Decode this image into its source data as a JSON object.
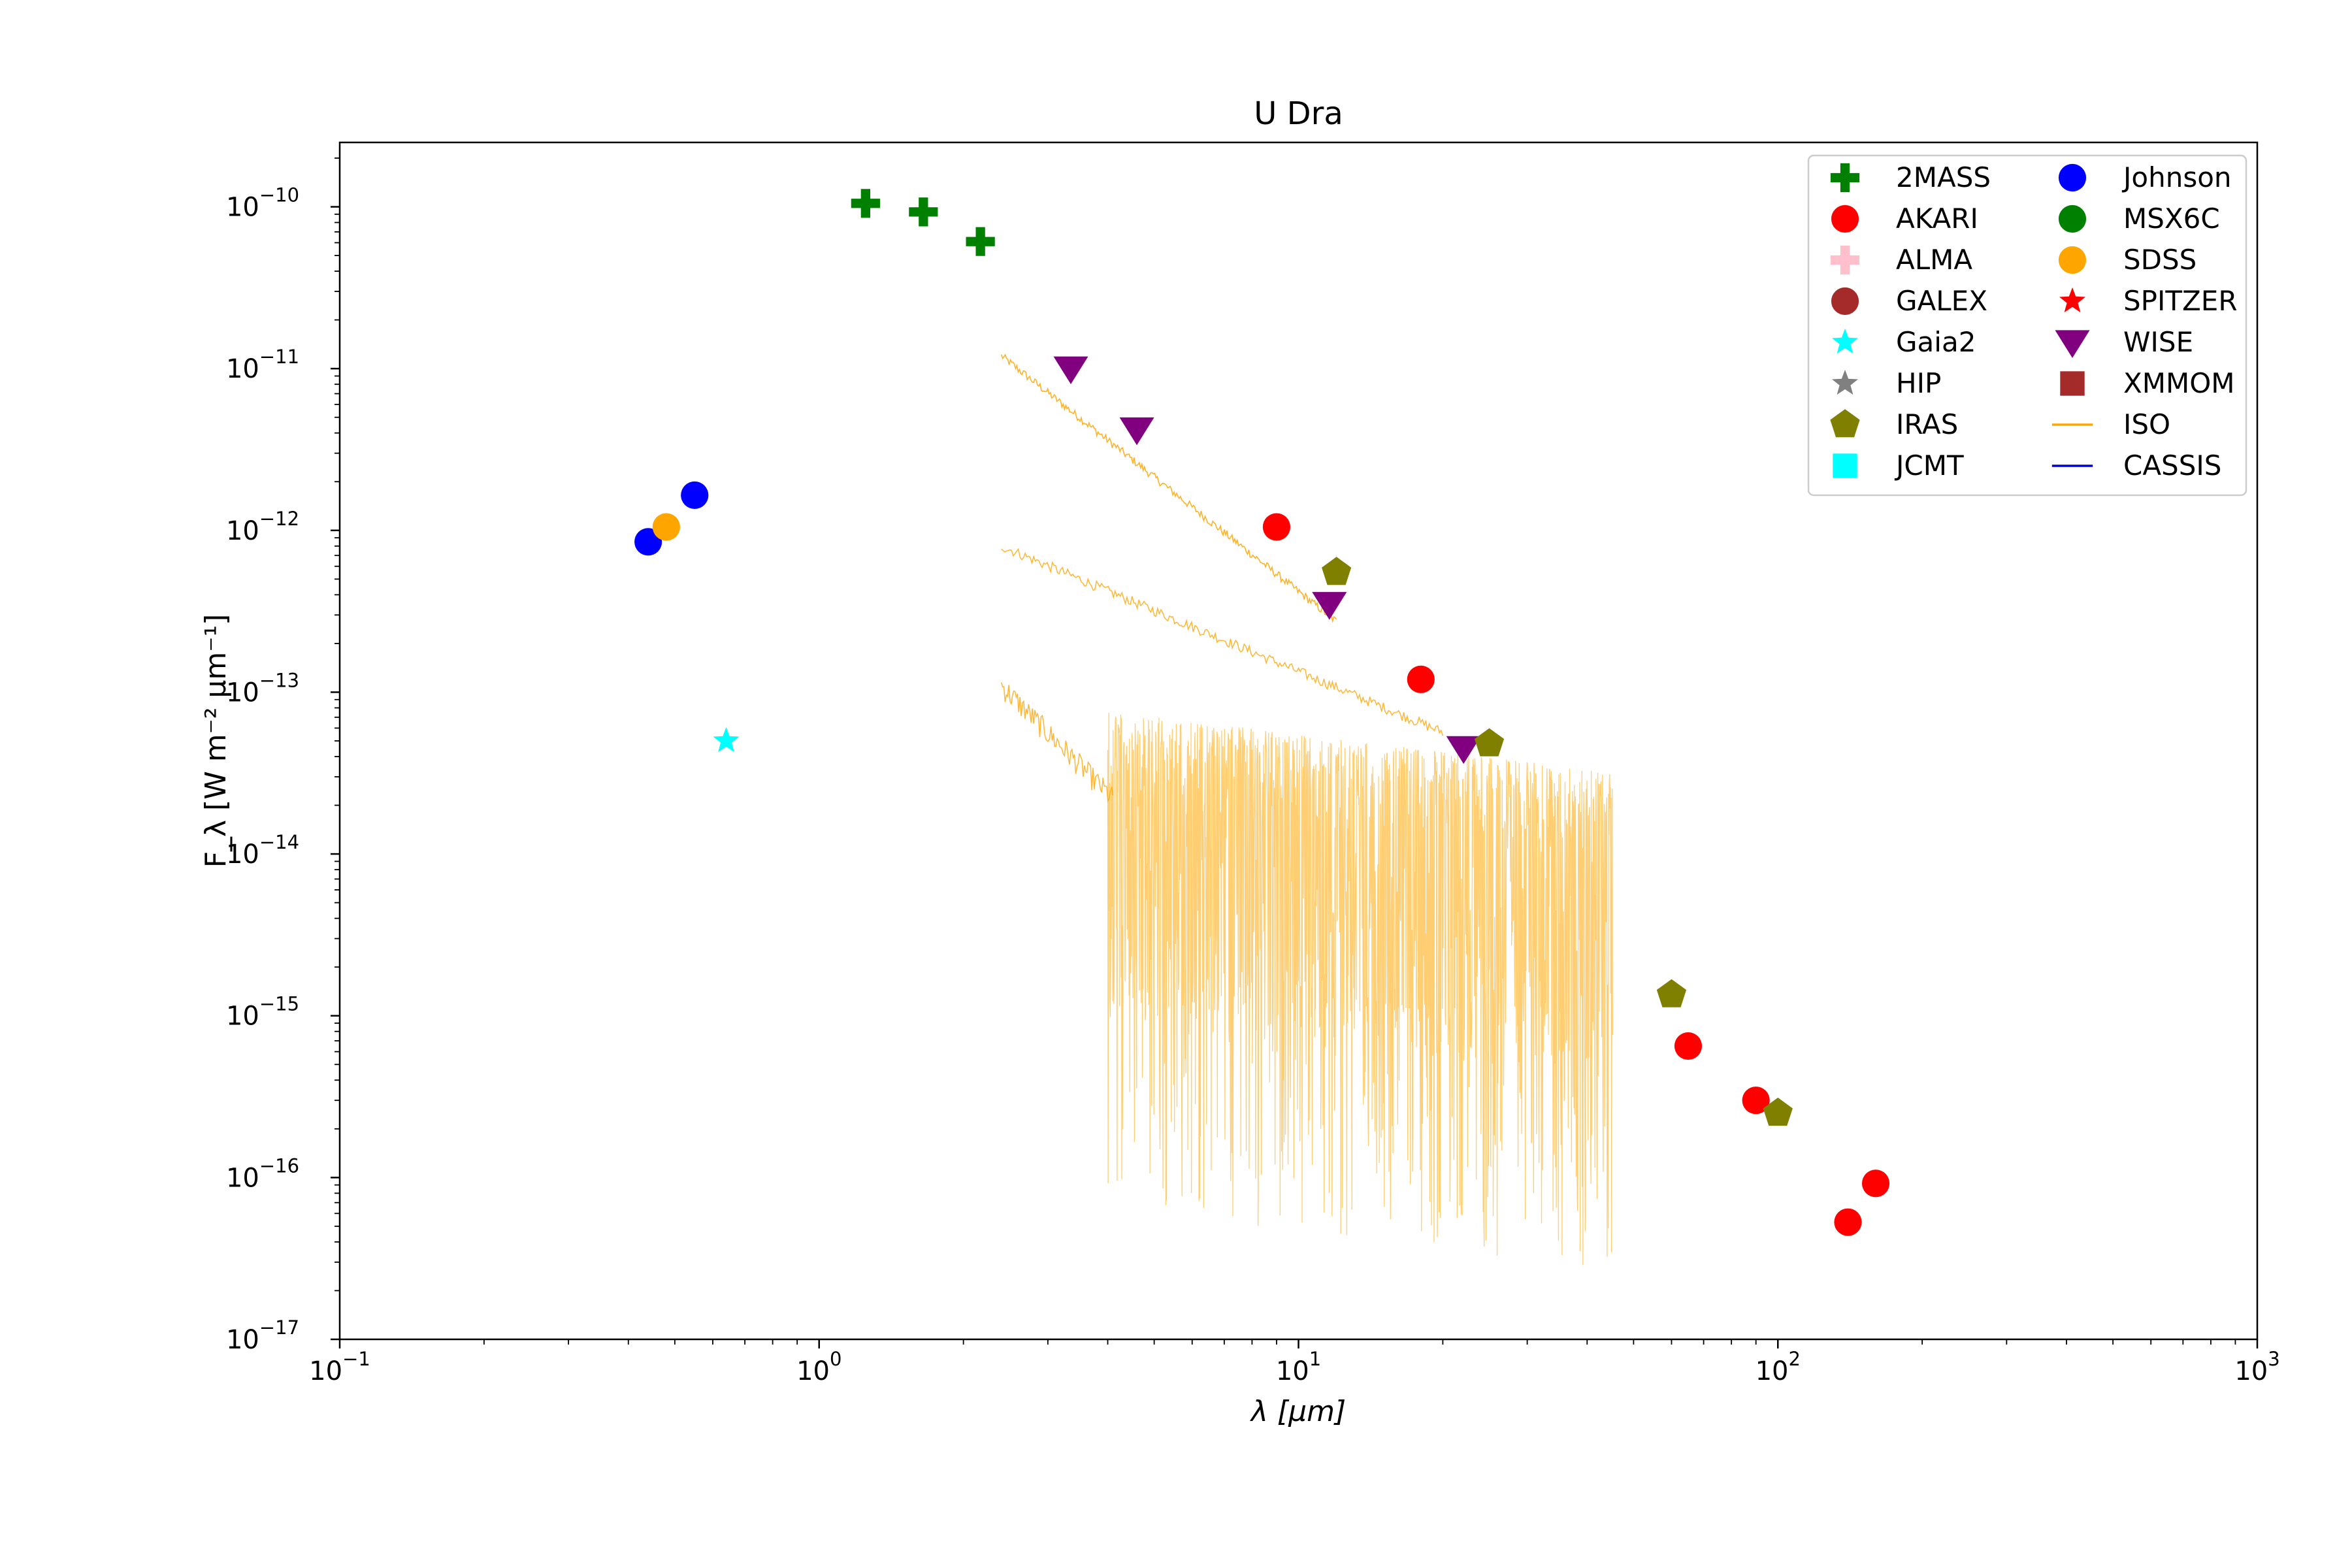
{
  "chart_data": {
    "type": "scatter",
    "title": "U Dra",
    "xlabel": "λ [μm]",
    "ylabel": "F_λ [W m⁻² μm⁻¹]",
    "x_scale": "log",
    "y_scale": "log",
    "xlim": [
      0.1,
      1000
    ],
    "ylim": [
      1e-17,
      2.5e-10
    ],
    "x_ticks": [
      {
        "value": 0.1,
        "base": "10",
        "exp": "−1"
      },
      {
        "value": 1,
        "base": "10",
        "exp": "0"
      },
      {
        "value": 10,
        "base": "10",
        "exp": "1"
      },
      {
        "value": 100,
        "base": "10",
        "exp": "2"
      },
      {
        "value": 1000,
        "base": "10",
        "exp": "3"
      }
    ],
    "y_ticks": [
      {
        "value": 1e-10,
        "base": "10",
        "exp": "−10"
      },
      {
        "value": 1e-11,
        "base": "10",
        "exp": "−11"
      },
      {
        "value": 1e-12,
        "base": "10",
        "exp": "−12"
      },
      {
        "value": 1e-13,
        "base": "10",
        "exp": "−13"
      },
      {
        "value": 1e-14,
        "base": "10",
        "exp": "−14"
      },
      {
        "value": 1e-15,
        "base": "10",
        "exp": "−15"
      },
      {
        "value": 1e-16,
        "base": "10",
        "exp": "−16"
      },
      {
        "value": 1e-17,
        "base": "10",
        "exp": "−17"
      }
    ],
    "legend_position": "top-right",
    "legend": [
      {
        "name": "2MASS",
        "marker": "plus",
        "color": "#008000"
      },
      {
        "name": "AKARI",
        "marker": "circle",
        "color": "#ff0000"
      },
      {
        "name": "ALMA",
        "marker": "plus",
        "color": "#ffc0cb"
      },
      {
        "name": "GALEX",
        "marker": "circle",
        "color": "#a52a2a"
      },
      {
        "name": "Gaia2",
        "marker": "star",
        "color": "#00ffff"
      },
      {
        "name": "HIP",
        "marker": "star",
        "color": "#808080"
      },
      {
        "name": "IRAS",
        "marker": "pentagon",
        "color": "#808000"
      },
      {
        "name": "JCMT",
        "marker": "square",
        "color": "#00ffff"
      },
      {
        "name": "Johnson",
        "marker": "circle",
        "color": "#0000ff"
      },
      {
        "name": "MSX6C",
        "marker": "circle",
        "color": "#008000"
      },
      {
        "name": "SDSS",
        "marker": "circle",
        "color": "#ffa500"
      },
      {
        "name": "SPITZER",
        "marker": "star",
        "color": "#ff0000"
      },
      {
        "name": "WISE",
        "marker": "triangle-down",
        "color": "#800080"
      },
      {
        "name": "XMMOM",
        "marker": "square",
        "color": "#a52a2a"
      },
      {
        "name": "ISO",
        "marker": "line",
        "color": "#ffa500"
      },
      {
        "name": "CASSIS",
        "marker": "line",
        "color": "#0000cd"
      }
    ],
    "series": [
      {
        "name": "2MASS",
        "marker": "plus",
        "color": "#008000",
        "points": [
          {
            "x": 1.25,
            "y": 1.05e-10
          },
          {
            "x": 1.65,
            "y": 9.3e-11
          },
          {
            "x": 2.17,
            "y": 6.1e-11
          }
        ]
      },
      {
        "name": "Johnson",
        "marker": "circle",
        "color": "#0000ff",
        "points": [
          {
            "x": 0.44,
            "y": 8.5e-13
          },
          {
            "x": 0.55,
            "y": 1.65e-12
          }
        ]
      },
      {
        "name": "SDSS",
        "marker": "circle",
        "color": "#ffa500",
        "points": [
          {
            "x": 0.48,
            "y": 1.05e-12
          }
        ]
      },
      {
        "name": "Gaia2",
        "marker": "star",
        "color": "#00ffff",
        "points": [
          {
            "x": 0.64,
            "y": 5e-14
          }
        ]
      },
      {
        "name": "WISE",
        "marker": "triangle-down",
        "color": "#800080",
        "points": [
          {
            "x": 3.35,
            "y": 1e-11
          },
          {
            "x": 4.6,
            "y": 4.2e-12
          },
          {
            "x": 11.6,
            "y": 3.5e-13
          },
          {
            "x": 22.1,
            "y": 4.5e-14
          }
        ]
      },
      {
        "name": "AKARI",
        "marker": "circle",
        "color": "#ff0000",
        "points": [
          {
            "x": 9.0,
            "y": 1.05e-12
          },
          {
            "x": 18.0,
            "y": 1.2e-13
          },
          {
            "x": 65,
            "y": 6.5e-16
          },
          {
            "x": 90,
            "y": 3e-16
          },
          {
            "x": 140,
            "y": 5.3e-17
          },
          {
            "x": 160,
            "y": 9.2e-17
          }
        ]
      },
      {
        "name": "IRAS",
        "marker": "pentagon",
        "color": "#808000",
        "points": [
          {
            "x": 12,
            "y": 5.5e-13
          },
          {
            "x": 25,
            "y": 4.8e-14
          },
          {
            "x": 60,
            "y": 1.35e-15
          },
          {
            "x": 100,
            "y": 2.5e-16
          }
        ]
      }
    ],
    "spectra": [
      {
        "name": "ISO",
        "color": "#ffa500",
        "note_x_range": [
          2.4,
          45.2
        ]
      }
    ]
  }
}
